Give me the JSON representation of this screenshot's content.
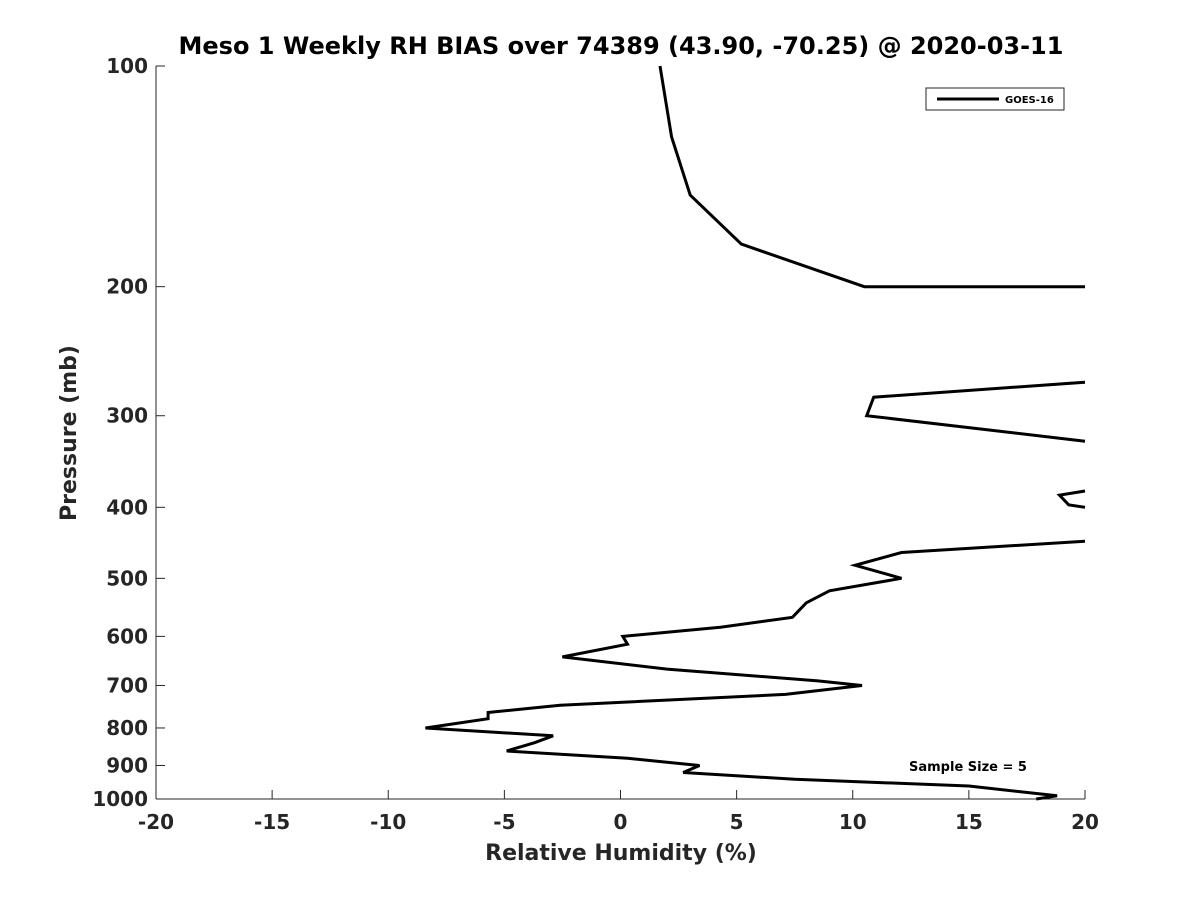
{
  "chart_data": {
    "type": "line",
    "title": "Meso 1 Weekly RH BIAS over 74389 (43.90, -70.25) @ 2020-03-11",
    "xlabel": "Relative Humidity (%)",
    "ylabel": "Pressure (mb)",
    "xlim": [
      -20,
      20
    ],
    "ylim": [
      100,
      1000
    ],
    "y_scale": "log",
    "y_reversed": true,
    "grid": false,
    "legend_position": "top-right",
    "x_ticks": [
      -20,
      -15,
      -10,
      -5,
      0,
      5,
      10,
      15,
      20
    ],
    "x_tick_labels": [
      "-20",
      "-15",
      "-10",
      "-5",
      "0",
      "5",
      "10",
      "15",
      "20"
    ],
    "y_ticks": [
      100,
      200,
      300,
      400,
      500,
      600,
      700,
      800,
      900,
      1000
    ],
    "y_tick_labels": [
      "100",
      "200",
      "300",
      "400",
      "500",
      "600",
      "700",
      "800",
      "900",
      "1000"
    ],
    "annotations": [
      "Sample Size = 5"
    ],
    "series": [
      {
        "name": "GOES-16",
        "color": "#000000",
        "segments": [
          [
            [
              1.7,
              100
            ],
            [
              2.2,
              125
            ],
            [
              3.0,
              150
            ],
            [
              5.2,
              175
            ],
            [
              10.5,
              200
            ],
            [
              20,
              200
            ]
          ],
          [
            [
              20,
              270
            ],
            [
              10.9,
              283
            ],
            [
              10.6,
              300
            ],
            [
              20,
              325
            ]
          ],
          [
            [
              20,
              380
            ],
            [
              18.9,
              385
            ],
            [
              19.3,
              397
            ],
            [
              20,
              400
            ]
          ],
          [
            [
              20,
              445
            ],
            [
              12.1,
              461
            ],
            [
              10.1,
              480
            ],
            [
              12.1,
              500
            ],
            [
              9.0,
              520
            ],
            [
              8.0,
              540
            ],
            [
              7.4,
              565
            ],
            [
              4.3,
              583
            ],
            [
              0.1,
              600
            ],
            [
              0.3,
              615
            ],
            [
              -2.5,
              640
            ],
            [
              2.0,
              665
            ],
            [
              8.5,
              690
            ],
            [
              10.4,
              700
            ],
            [
              7.1,
              720
            ],
            [
              -2.6,
              745
            ],
            [
              -5.7,
              762
            ],
            [
              -5.7,
              777
            ],
            [
              -8.4,
              800
            ],
            [
              -2.9,
              820
            ],
            [
              -3.7,
              838
            ],
            [
              -4.9,
              860
            ],
            [
              0.3,
              880
            ],
            [
              3.4,
              900
            ],
            [
              2.7,
              920
            ],
            [
              7.5,
              940
            ],
            [
              15.0,
              960
            ],
            [
              18.8,
              990
            ],
            [
              17.9,
              1000
            ]
          ]
        ]
      }
    ]
  }
}
